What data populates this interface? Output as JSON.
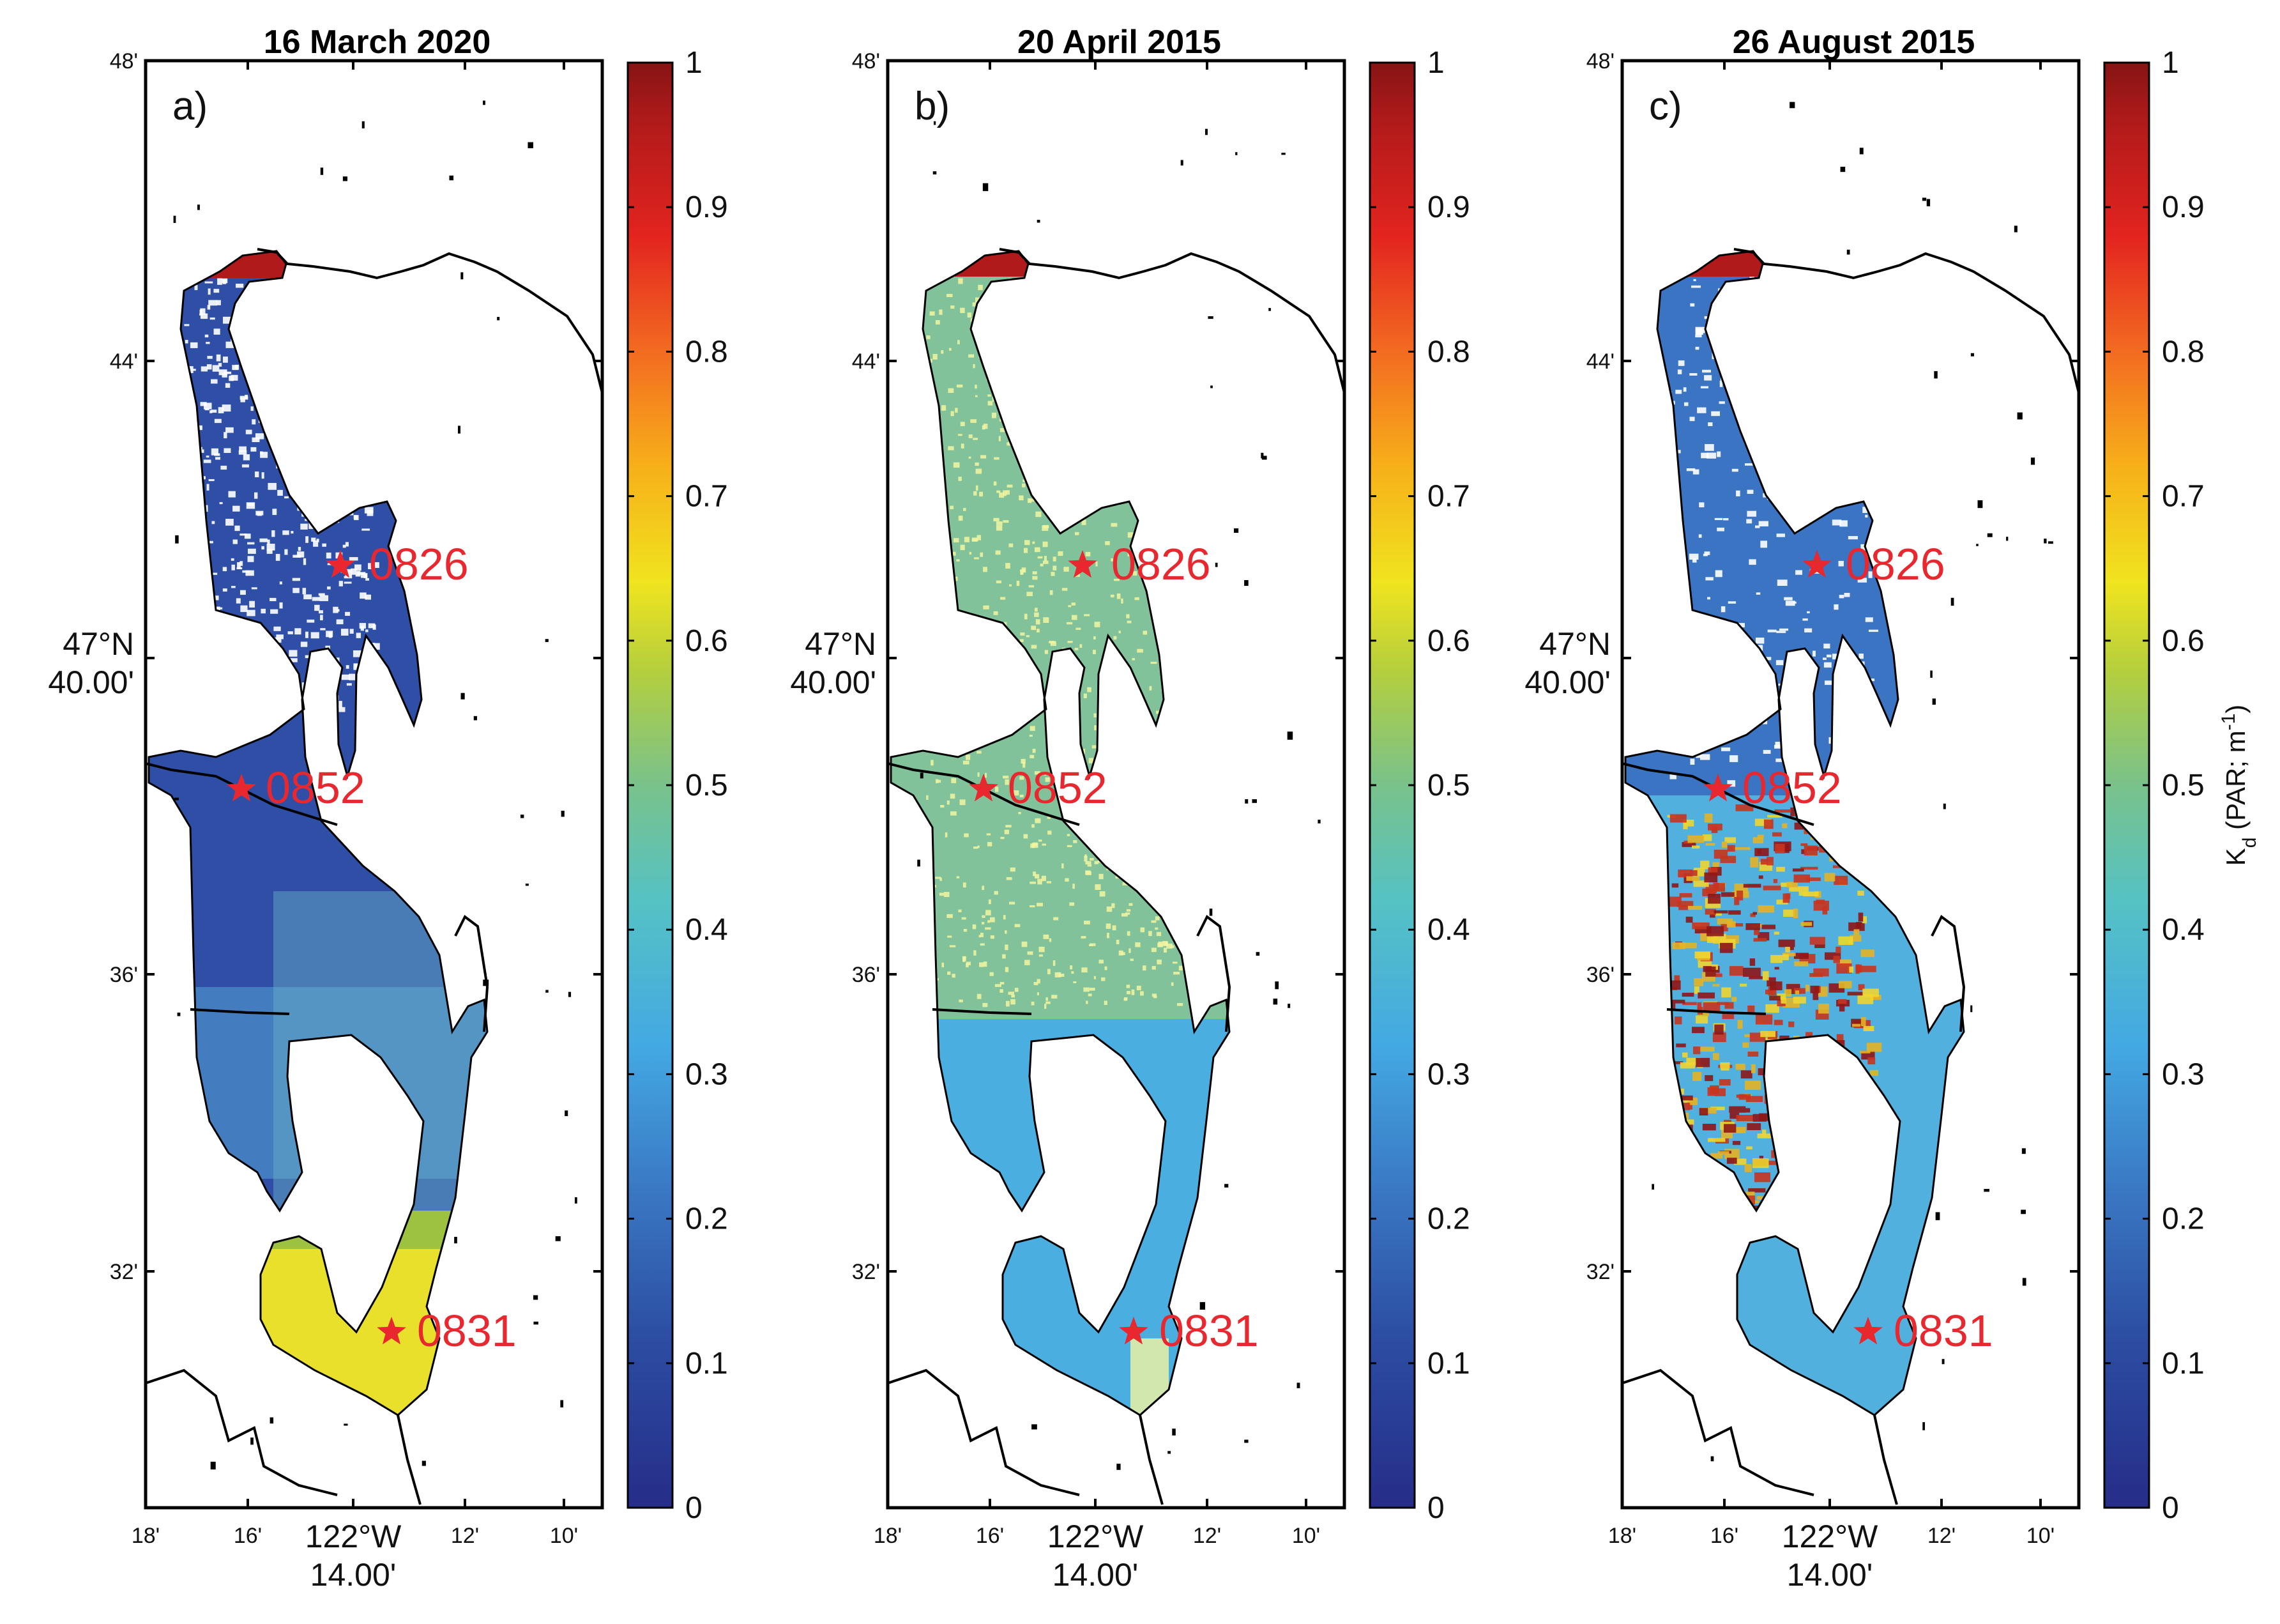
{
  "colors": {
    "star": "#e8282e",
    "land": "#000000",
    "background": "#ffffff"
  },
  "colorbar": {
    "ticks": [
      "0",
      "0.1",
      "0.2",
      "0.3",
      "0.4",
      "0.5",
      "0.6",
      "0.7",
      "0.8",
      "0.9",
      "1"
    ],
    "label": "K_d (PAR; m^-1)",
    "label_main": "K",
    "label_sub": "d",
    "label_rest": " (PAR; m",
    "label_sup": "-1",
    "label_end": ")"
  },
  "axes": {
    "y_ticks": [
      "48'",
      "44'",
      "36'",
      "32'"
    ],
    "y_center_top": "47°N",
    "y_center_bottom": "40.00'",
    "x_ticks": [
      "18'",
      "16'",
      "12'",
      "10'"
    ],
    "x_center_top": "122°W",
    "x_center_bottom": "14.00'"
  },
  "panels": [
    {
      "letter": "a)",
      "title": "16 March 2020",
      "scheme": "a",
      "stations": [
        {
          "id": "0826"
        },
        {
          "id": "0852"
        },
        {
          "id": "0831"
        }
      ]
    },
    {
      "letter": "b)",
      "title": "20 April 2015",
      "scheme": "b",
      "stations": [
        {
          "id": "0826"
        },
        {
          "id": "0852"
        },
        {
          "id": "0831"
        }
      ]
    },
    {
      "letter": "c)",
      "title": "26 August 2015",
      "scheme": "c",
      "stations": [
        {
          "id": "0826"
        },
        {
          "id": "0852"
        },
        {
          "id": "0831"
        }
      ]
    }
  ]
}
